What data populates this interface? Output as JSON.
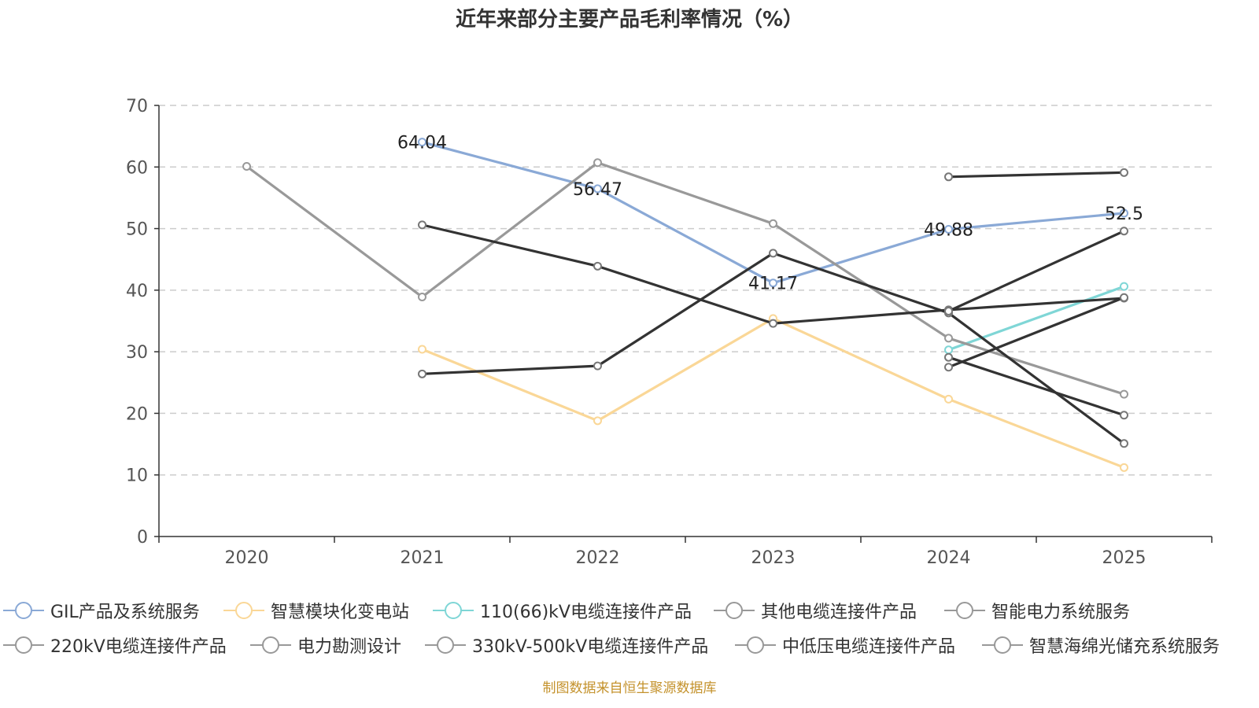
{
  "chart_data": {
    "type": "line",
    "title": "近年来部分主要产品毛利率情况（%）",
    "source": "制图数据来自恒生聚源数据库",
    "categories": [
      "2020",
      "2021",
      "2022",
      "2023",
      "2024",
      "2025"
    ],
    "ylim": [
      0,
      70
    ],
    "yticks": [
      0,
      10,
      20,
      30,
      40,
      50,
      60,
      70
    ],
    "grid": true,
    "legend_position": "bottom",
    "series": [
      {
        "name": "GIL产品及系统服务",
        "color": "#8aa9d6",
        "values": [
          null,
          64.04,
          56.47,
          41.17,
          49.88,
          52.5
        ],
        "labels": [
          null,
          "64.04",
          "56.47",
          "41.17",
          "49.88",
          "52.5"
        ]
      },
      {
        "name": "智慧模块化变电站",
        "color": "#fad797",
        "values": [
          null,
          30.4,
          18.8,
          35.4,
          22.3,
          11.2
        ]
      },
      {
        "name": "110(66)kV电缆连接件产品",
        "color": "#7fd6d6",
        "values": [
          null,
          null,
          null,
          null,
          30.3,
          40.6
        ]
      },
      {
        "name": "其他电缆连接件产品",
        "color": "#999999",
        "values": [
          60.1,
          38.9,
          60.7,
          50.8,
          32.2,
          23.1
        ]
      },
      {
        "name": "智能电力系统服务",
        "color": "#333333",
        "values": [
          null,
          50.6,
          43.9,
          34.6,
          36.8,
          38.7
        ]
      },
      {
        "name": "220kV电缆连接件产品",
        "color": "#333333",
        "values": [
          null,
          null,
          null,
          null,
          58.4,
          59.1
        ]
      },
      {
        "name": "电力勘测设计",
        "color": "#333333",
        "values": [
          null,
          26.4,
          27.7,
          46.0,
          36.3,
          15.1
        ]
      },
      {
        "name": "330kV-500kV电缆连接件产品",
        "color": "#333333",
        "values": [
          null,
          null,
          null,
          null,
          27.5,
          38.8
        ]
      },
      {
        "name": "中低压电缆连接件产品",
        "color": "#333333",
        "values": [
          null,
          null,
          null,
          null,
          29.1,
          19.7
        ]
      },
      {
        "name": "智慧海绵光储充系统服务",
        "color": "#333333",
        "values": [
          null,
          null,
          null,
          null,
          36.6,
          49.6
        ]
      }
    ],
    "legend_icon_colors": [
      "#8aa9d6",
      "#fad797",
      "#7fd6d6",
      "#999999",
      "#999999",
      "#999999",
      "#999999",
      "#999999",
      "#999999",
      "#999999"
    ]
  }
}
